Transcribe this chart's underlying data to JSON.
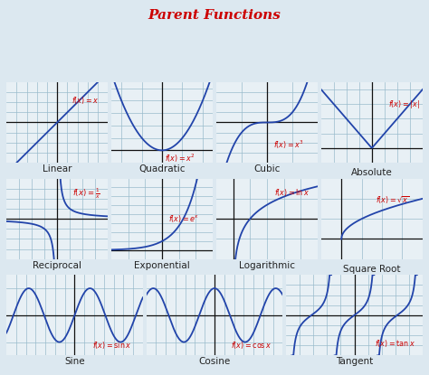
{
  "title": "Parent Functions",
  "title_color": "#cc0000",
  "title_fontsize": 11,
  "outer_bg": "#dce8f0",
  "panel_bg": "#e8f0f5",
  "grid_color": "#99bbcc",
  "axis_color": "#111111",
  "curve_color": "#2244aa",
  "label_color": "#cc0000",
  "name_color": "#222222",
  "name_fontsize": 7.5,
  "func_fontsize": 5.8,
  "row0_label_below": [
    "Linear",
    "Quadratic",
    "Cubic"
  ],
  "row0_label_right": "Absolute",
  "row1_label_below": [
    "Reciprocal",
    "Exponential",
    "Logarithmic"
  ],
  "row1_label_right": "Square Root",
  "row2_label_below": [
    "Sine",
    "Cosine",
    "Tangent"
  ]
}
